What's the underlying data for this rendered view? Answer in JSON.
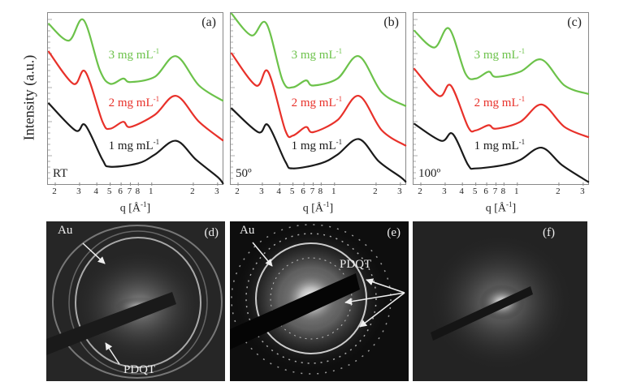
{
  "y_axis_title": "Intensity (a.u.)",
  "x_axis_title_main": "q [Å",
  "x_axis_title_sup": "-1",
  "x_axis_title_end": "]",
  "tick_labels": [
    "2",
    "3",
    "4",
    "5",
    "6",
    "7",
    "8",
    "1",
    "2",
    "3"
  ],
  "colors": {
    "1 mg": "#1a1a1a",
    "2 mg": "#e8312a",
    "3 mg": "#6cc24a"
  },
  "chart_data": [
    {
      "type": "line",
      "panel_label": "(a)",
      "condition": "RT",
      "xscale": "log",
      "xlim": [
        0.0177,
        0.335
      ],
      "ylabel": "Intensity (a.u.)",
      "xlabel": "q [Å-1]",
      "x_ticks": [
        0.02,
        0.03,
        0.04,
        0.05,
        0.06,
        0.07,
        0.08,
        0.1,
        0.2,
        0.3
      ],
      "series": [
        {
          "name": "1 mg mL-1",
          "label_main": "1 mg mL",
          "label_sup": "-1",
          "color": "#1a1a1a",
          "x": [
            0.0178,
            0.028,
            0.033,
            0.044,
            0.05,
            0.08,
            0.105,
            0.15,
            0.21,
            0.3,
            0.33
          ],
          "y": [
            4.8,
            3.2,
            3.5,
            1.5,
            1.1,
            1.3,
            1.8,
            2.6,
            1.5,
            0.5,
            0.1
          ]
        },
        {
          "name": "2 mg mL-1",
          "label_main": "2 mg mL",
          "label_sup": "-1",
          "color": "#e8312a",
          "x": [
            0.0178,
            0.027,
            0.033,
            0.044,
            0.05,
            0.062,
            0.07,
            0.105,
            0.15,
            0.22,
            0.33
          ],
          "y": [
            7.8,
            5.9,
            6.6,
            3.7,
            3.3,
            3.7,
            3.4,
            4.1,
            5.2,
            3.7,
            2.6
          ]
        },
        {
          "name": "3 mg mL-1",
          "label_main": "3 mg mL",
          "label_sup": "-1",
          "color": "#6cc24a",
          "x": [
            0.0178,
            0.025,
            0.032,
            0.042,
            0.05,
            0.062,
            0.07,
            0.105,
            0.15,
            0.22,
            0.33
          ],
          "y": [
            9.4,
            8.4,
            9.6,
            6.7,
            5.9,
            6.2,
            6.0,
            6.3,
            7.5,
            5.8,
            4.9
          ]
        }
      ]
    },
    {
      "type": "line",
      "panel_label": "(b)",
      "condition": "50º",
      "xscale": "log",
      "xlim": [
        0.0177,
        0.335
      ],
      "ylabel": "Intensity (a.u.)",
      "xlabel": "q [Å-1]",
      "x_ticks": [
        0.02,
        0.03,
        0.04,
        0.05,
        0.06,
        0.07,
        0.08,
        0.1,
        0.2,
        0.3
      ],
      "series": [
        {
          "name": "1 mg mL-1",
          "label_main": "1 mg mL",
          "label_sup": "-1",
          "color": "#1a1a1a",
          "x": [
            0.0178,
            0.028,
            0.033,
            0.044,
            0.05,
            0.08,
            0.105,
            0.15,
            0.21,
            0.3,
            0.33
          ],
          "y": [
            4.5,
            3.1,
            3.5,
            1.4,
            1.0,
            1.3,
            1.8,
            2.7,
            1.4,
            0.5,
            0.2
          ]
        },
        {
          "name": "2 mg mL-1",
          "label_main": "2 mg mL",
          "label_sup": "-1",
          "color": "#e8312a",
          "x": [
            0.0178,
            0.027,
            0.033,
            0.044,
            0.05,
            0.062,
            0.07,
            0.105,
            0.15,
            0.22,
            0.33
          ],
          "y": [
            7.7,
            5.8,
            6.6,
            3.2,
            2.9,
            3.4,
            3.1,
            3.8,
            5.2,
            3.2,
            2.3
          ]
        },
        {
          "name": "3 mg mL-1",
          "label_main": "3 mg mL",
          "label_sup": "-1",
          "color": "#6cc24a",
          "x": [
            0.0178,
            0.025,
            0.032,
            0.042,
            0.05,
            0.062,
            0.07,
            0.105,
            0.15,
            0.22,
            0.33
          ],
          "y": [
            10.0,
            8.7,
            9.4,
            6.1,
            5.7,
            6.1,
            5.8,
            6.2,
            7.5,
            5.4,
            4.6
          ]
        }
      ]
    },
    {
      "type": "line",
      "panel_label": "(c)",
      "condition": "100º",
      "xscale": "log",
      "xlim": [
        0.0177,
        0.335
      ],
      "ylabel": "Intensity (a.u.)",
      "xlabel": "q [Å-1]",
      "x_ticks": [
        0.02,
        0.03,
        0.04,
        0.05,
        0.06,
        0.07,
        0.08,
        0.1,
        0.2,
        0.3
      ],
      "series": [
        {
          "name": "1 mg mL-1",
          "label_main": "1 mg mL",
          "label_sup": "-1",
          "color": "#1a1a1a",
          "x": [
            0.0178,
            0.028,
            0.034,
            0.044,
            0.05,
            0.08,
            0.105,
            0.15,
            0.21,
            0.3,
            0.33
          ],
          "y": [
            3.6,
            2.6,
            3.0,
            1.2,
            1.0,
            1.2,
            1.5,
            2.2,
            1.2,
            0.4,
            0.2
          ]
        },
        {
          "name": "2 mg mL-1",
          "label_main": "2 mg mL",
          "label_sup": "-1",
          "color": "#e8312a",
          "x": [
            0.0178,
            0.027,
            0.033,
            0.044,
            0.05,
            0.062,
            0.07,
            0.105,
            0.15,
            0.22,
            0.33
          ],
          "y": [
            6.8,
            5.2,
            5.8,
            3.4,
            3.2,
            3.5,
            3.3,
            3.7,
            4.7,
            3.4,
            2.8
          ]
        },
        {
          "name": "3 mg mL-1",
          "label_main": "3 mg mL",
          "label_sup": "-1",
          "color": "#6cc24a",
          "x": [
            0.0178,
            0.025,
            0.032,
            0.042,
            0.05,
            0.062,
            0.07,
            0.105,
            0.15,
            0.22,
            0.33
          ],
          "y": [
            9.0,
            8.0,
            9.1,
            6.5,
            6.2,
            6.6,
            6.3,
            6.6,
            7.3,
            5.8,
            5.3
          ]
        }
      ]
    }
  ],
  "images": [
    {
      "panel_label": "(d)",
      "labels": [
        "Au",
        "PDQT"
      ]
    },
    {
      "panel_label": "(e)",
      "labels": [
        "Au",
        "PDQT"
      ]
    },
    {
      "panel_label": "(f)",
      "labels": []
    }
  ]
}
